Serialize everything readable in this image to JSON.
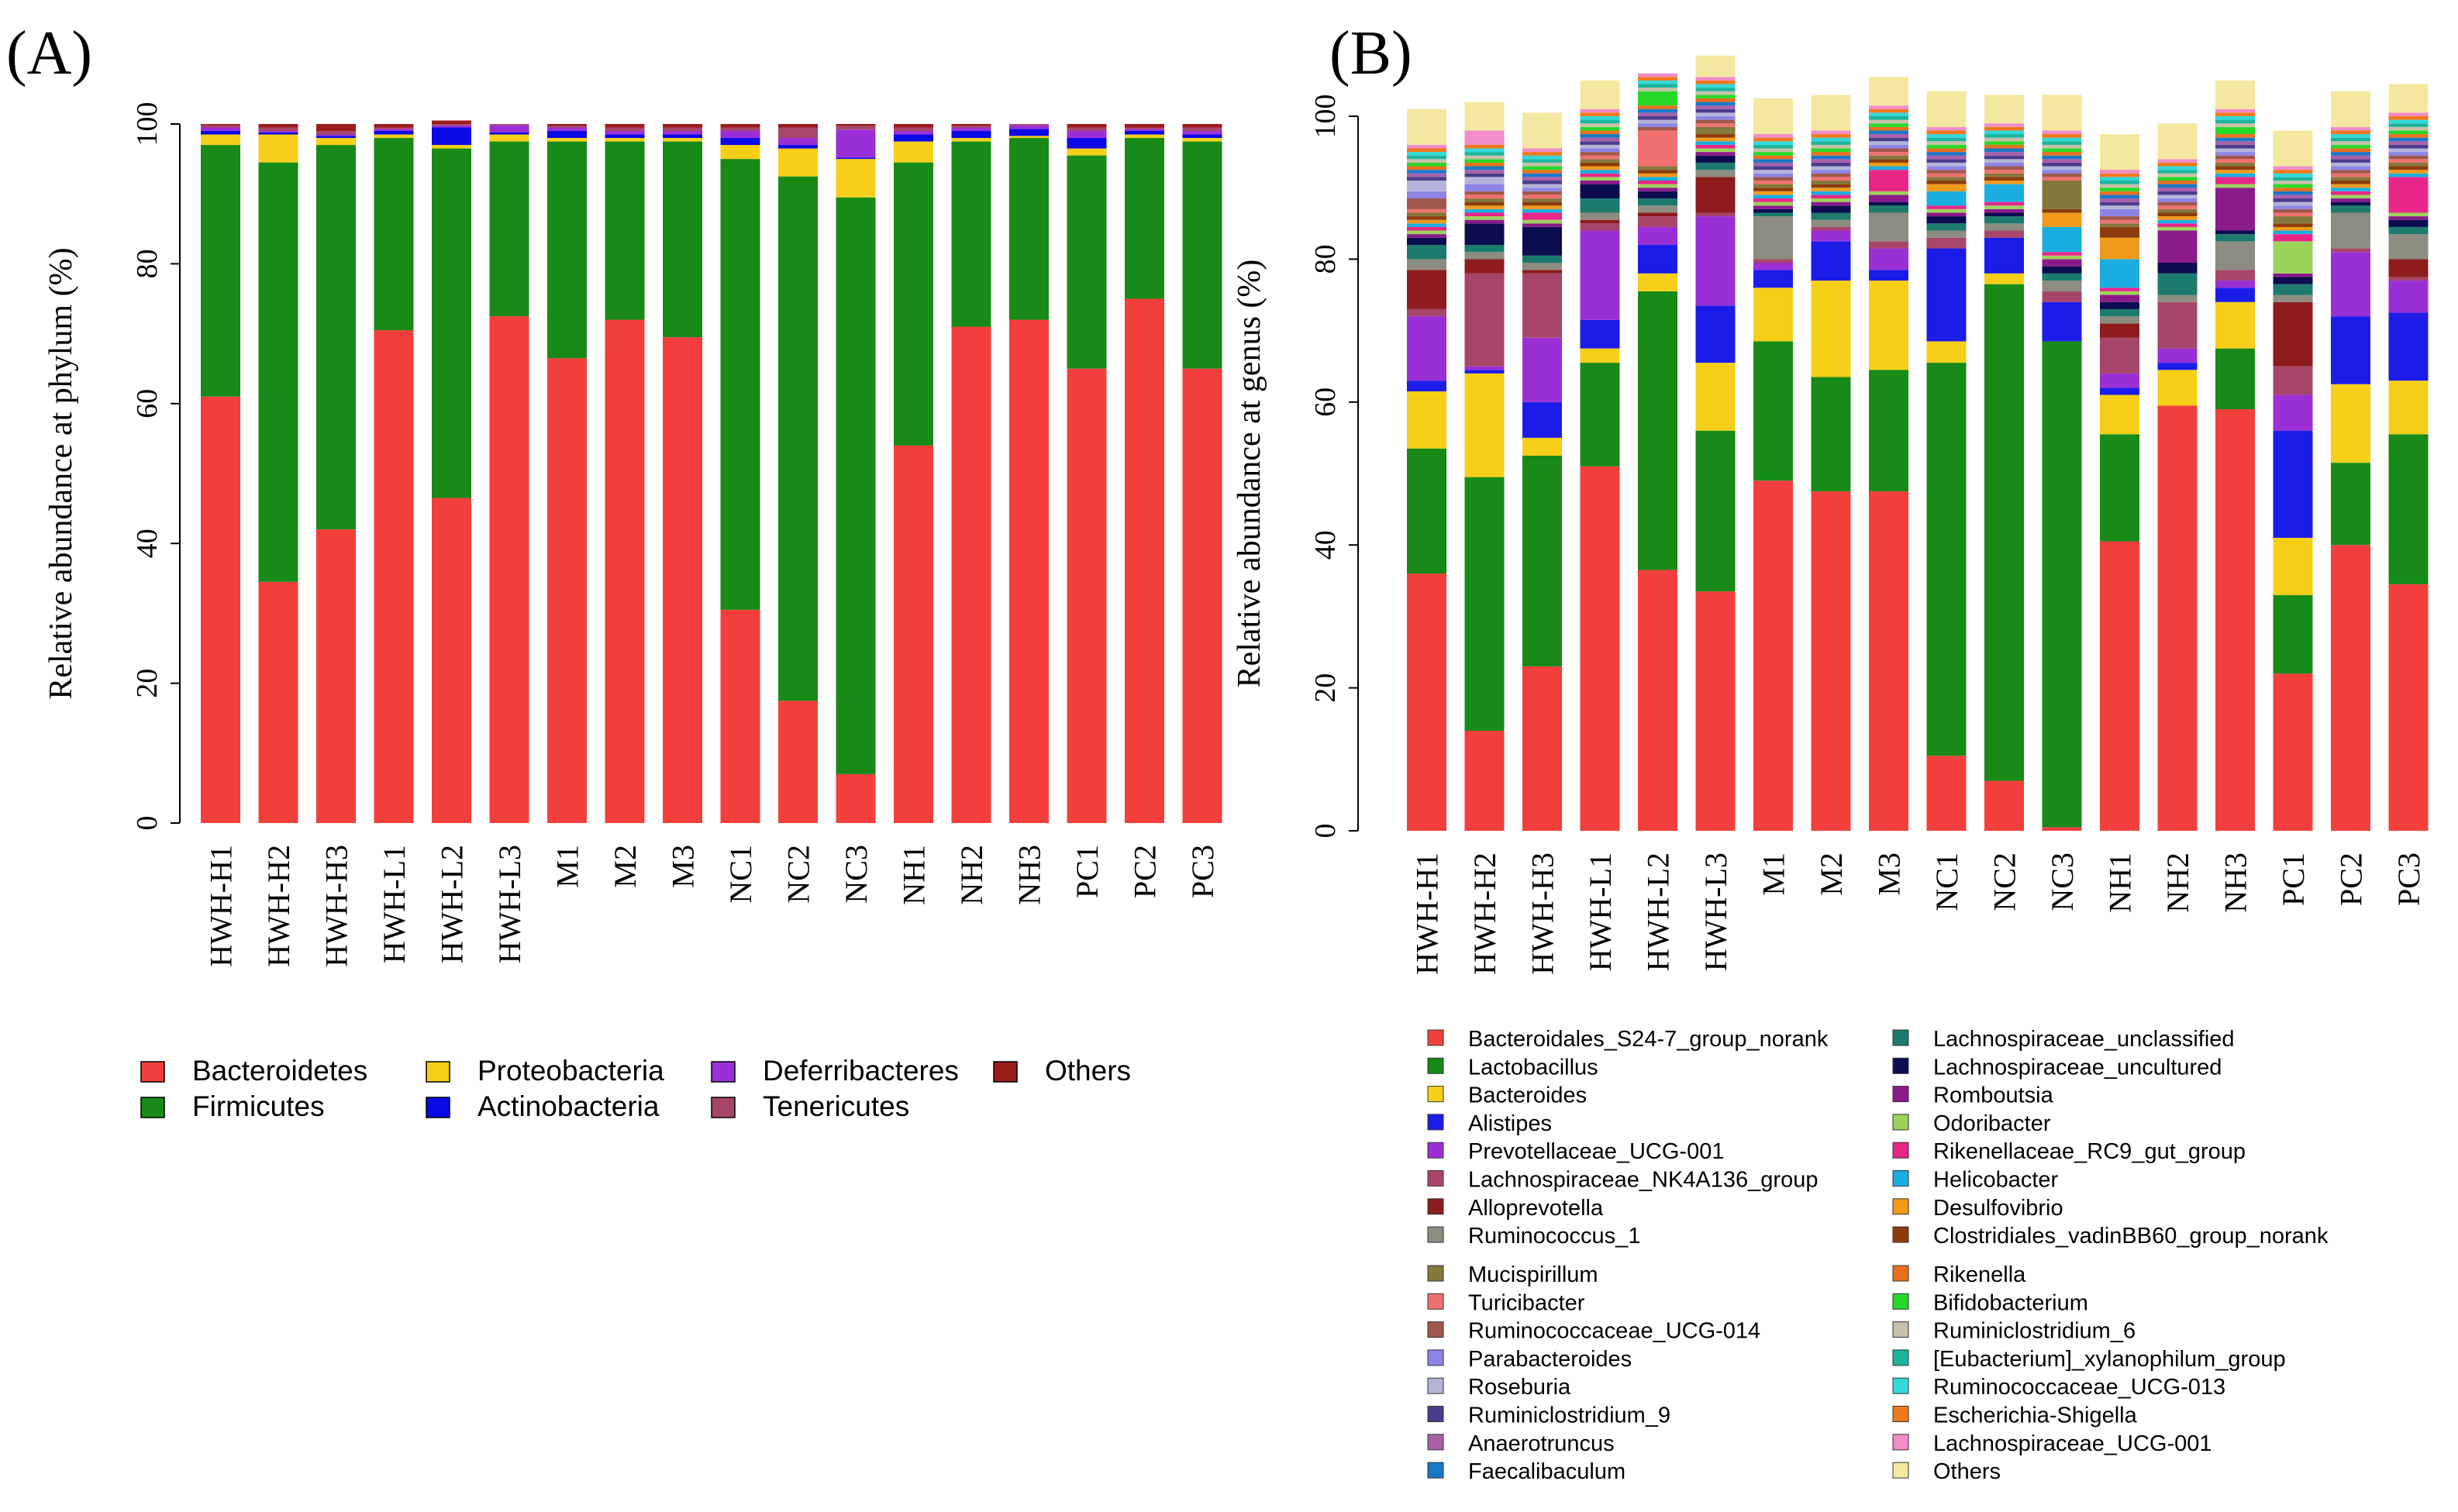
{
  "chart_data": [
    {
      "type": "bar",
      "stacked": true,
      "panel_label": "(A)",
      "title": "",
      "xlabel": "",
      "ylabel": "Relative abundance at  phylum (%)",
      "ylim": [
        0,
        100
      ],
      "yticks": [
        0,
        20,
        40,
        60,
        80,
        100
      ],
      "categories": [
        "HWH-H1",
        "HWH-H2",
        "HWH-H3",
        "HWH-L1",
        "HWH-L2",
        "HWH-L3",
        "M1",
        "M2",
        "M3",
        "NC1",
        "NC2",
        "NC3",
        "NH1",
        "NH2",
        "NH3",
        "PC1",
        "PC2",
        "PC3"
      ],
      "series": [
        {
          "name": "Bacteroidetes",
          "color": "#f33f3b",
          "values": [
            61,
            34.5,
            42,
            70.5,
            46.5,
            72.5,
            66.5,
            72,
            69.5,
            30.5,
            17.5,
            7,
            54,
            71,
            72,
            65,
            75,
            65
          ]
        },
        {
          "name": "Firmicutes",
          "color": "#178a17",
          "values": [
            36,
            60,
            55,
            27.5,
            50,
            25,
            31,
            25.5,
            28,
            64.5,
            75,
            82.5,
            40.5,
            26.5,
            26,
            30.5,
            23,
            32.5
          ]
        },
        {
          "name": "Proteobacteria",
          "color": "#f7cf18",
          "values": [
            1.5,
            4,
            1,
            0.5,
            0.5,
            1,
            0.5,
            0.5,
            0.5,
            2,
            4,
            5.5,
            3,
            0.5,
            0.3,
            1,
            0.5,
            0.5
          ]
        },
        {
          "name": "Actinobacteria",
          "color": "#0a0ae6",
          "values": [
            0.5,
            0.3,
            0.3,
            0.5,
            2.5,
            0.3,
            1,
            0.5,
            0.5,
            1,
            0.5,
            0.2,
            1,
            1,
            1,
            1.5,
            0.5,
            0.5
          ]
        },
        {
          "name": "Deferribacteres",
          "color": "#9b2fd6",
          "values": [
            0.5,
            0.2,
            0.2,
            0.3,
            0.3,
            1,
            0.5,
            0.5,
            0.5,
            1,
            1,
            4,
            0.5,
            0.5,
            0.5,
            1,
            0.3,
            0.5
          ]
        },
        {
          "name": "Tenericutes",
          "color": "#a8456a",
          "values": [
            0.3,
            0.5,
            0.5,
            0.2,
            0.2,
            0.2,
            0.2,
            0.5,
            0.5,
            0.5,
            1.5,
            0.5,
            0.5,
            0.2,
            0.2,
            0.5,
            0.2,
            0.5
          ]
        },
        {
          "name": "Others",
          "color": "#9c1c1c",
          "values": [
            0.2,
            0.5,
            1,
            0.5,
            0.5,
            0,
            0.3,
            0.5,
            0.5,
            0.5,
            0.5,
            0.3,
            0.5,
            0.3,
            0,
            0.5,
            0.5,
            0.5
          ]
        }
      ]
    },
    {
      "type": "bar",
      "stacked": true,
      "panel_label": "(B)",
      "title": "",
      "xlabel": "",
      "ylabel": "Relative abundance at genus (%)",
      "ylim": [
        0,
        100
      ],
      "yticks": [
        0,
        20,
        40,
        60,
        80,
        100
      ],
      "categories": [
        "HWH-H1",
        "HWH-H2",
        "HWH-H3",
        "HWH-L1",
        "HWH-L2",
        "HWH-L3",
        "M1",
        "M2",
        "M3",
        "NC1",
        "NC2",
        "NC3",
        "NH1",
        "NH2",
        "NH3",
        "PC1",
        "PC2",
        "PC3"
      ],
      "series": [
        {
          "name": "Bacteroidales_S24-7_group_norank",
          "color": "#f33f3b",
          "values": [
            36,
            14,
            23,
            51,
            36.5,
            33.5,
            49,
            47.5,
            47.5,
            10.5,
            7,
            0.5,
            40.5,
            59.5,
            59,
            22,
            40,
            34.5
          ]
        },
        {
          "name": "Lactobacillus",
          "color": "#178a17",
          "values": [
            17.5,
            35.5,
            29.5,
            14.5,
            39,
            22.5,
            19.5,
            16,
            17,
            55,
            69.5,
            68,
            15,
            0,
            8.5,
            11,
            11.5,
            21
          ]
        },
        {
          "name": "Bacteroides",
          "color": "#f7cf18",
          "values": [
            8,
            14.5,
            2.5,
            2,
            2.5,
            9.5,
            7.5,
            13.5,
            12.5,
            3,
            1.5,
            0,
            5.5,
            5,
            6.5,
            8,
            11,
            7.5
          ]
        },
        {
          "name": "Alistipes",
          "color": "#1c1ce8",
          "values": [
            1.5,
            0.5,
            5,
            4,
            4,
            8,
            2.5,
            5.5,
            1.5,
            13,
            5,
            5.5,
            1,
            1,
            2,
            15,
            9.5,
            9.5
          ]
        },
        {
          "name": "Prevotellaceae_UCG-001",
          "color": "#9b2fd6",
          "values": [
            9,
            0.5,
            9,
            12.5,
            2.5,
            12.5,
            1,
            1.5,
            3,
            0,
            0,
            0,
            2,
            2,
            1,
            5,
            9,
            4.5
          ]
        },
        {
          "name": "Lachnospiraceae_NK4A136_group",
          "color": "#a8456a",
          "values": [
            1,
            13,
            9,
            1,
            1.5,
            0.5,
            0.5,
            0.5,
            1,
            1.5,
            1,
            1.5,
            5,
            6.5,
            1.5,
            4,
            0.5,
            0.5
          ]
        },
        {
          "name": "Alloprevotella",
          "color": "#8e1c1c",
          "values": [
            5.5,
            2,
            0.5,
            0.5,
            0.5,
            5,
            0,
            0,
            0,
            0,
            0,
            0,
            2,
            0,
            0,
            9,
            0,
            2.5
          ]
        },
        {
          "name": "Ruminococcus_1",
          "color": "#8c8c80",
          "values": [
            1.5,
            1,
            1,
            1,
            1,
            1,
            6,
            1,
            4,
            1,
            1,
            1.5,
            1,
            1,
            4,
            1,
            5,
            3.5
          ]
        },
        {
          "name": "Lachnospiraceae_unclassified",
          "color": "#1d7a6e",
          "values": [
            2,
            1,
            1,
            2,
            1,
            1,
            0.5,
            1,
            1,
            1,
            1,
            1,
            1,
            3,
            1,
            1.5,
            1,
            1
          ]
        },
        {
          "name": "Lachnospiraceae_uncultured",
          "color": "#0c0c50",
          "values": [
            1,
            3,
            4,
            2,
            1,
            1,
            0.5,
            1,
            0.5,
            1,
            0.5,
            1,
            1,
            1.5,
            0.5,
            1,
            0.5,
            1
          ]
        },
        {
          "name": "Romboutsia",
          "color": "#8b1a8b",
          "values": [
            0.5,
            0.5,
            0.5,
            0.5,
            0.5,
            0.5,
            0.5,
            0.5,
            1,
            0.5,
            0.5,
            1,
            1,
            4.5,
            6,
            0.5,
            0.5,
            0.5
          ]
        },
        {
          "name": "Odoribacter",
          "color": "#9cd35a",
          "values": [
            0.5,
            0.5,
            0.5,
            0.5,
            0.5,
            0.5,
            0.5,
            0.5,
            0.5,
            0.5,
            0.5,
            0.5,
            0.5,
            0.5,
            0.5,
            4.5,
            0.5,
            0.5
          ]
        },
        {
          "name": "Rikenellaceae_RC9_gut_group",
          "color": "#e82688",
          "values": [
            0.5,
            0.5,
            1,
            0.5,
            0.5,
            0.5,
            0.5,
            0.5,
            3,
            0.5,
            0.5,
            0.5,
            0.5,
            0.5,
            1,
            1,
            0.5,
            5
          ]
        },
        {
          "name": "Helicobacter",
          "color": "#1aaee0",
          "values": [
            0.5,
            0.5,
            0.5,
            0.5,
            0.5,
            0.5,
            0.5,
            0.5,
            0.5,
            2,
            2.5,
            3.5,
            4,
            0.5,
            0.5,
            0.5,
            0.5,
            0.5
          ]
        },
        {
          "name": "Desulfovibrio",
          "color": "#f29a1c",
          "values": [
            0.5,
            0.5,
            0.5,
            0.5,
            0.5,
            0.5,
            0.5,
            0.5,
            0.5,
            1,
            0.5,
            2,
            3,
            0.5,
            0.5,
            0.5,
            0.5,
            0.5
          ]
        },
        {
          "name": "Clostridiales_vadinBB60_group_norank",
          "color": "#8c3c0c",
          "values": [
            0.5,
            0.5,
            0.5,
            0.5,
            0.5,
            0.5,
            0.5,
            0.5,
            0.5,
            0.5,
            0.5,
            0.5,
            1.5,
            0.5,
            0.5,
            0.5,
            0.5,
            0.5
          ]
        },
        {
          "name": "Mucispirillum",
          "color": "#84783c",
          "values": [
            0.5,
            0.5,
            0.5,
            0.5,
            0.5,
            1,
            0.5,
            0.5,
            0.5,
            0.5,
            0.5,
            4,
            0.5,
            0.5,
            0.5,
            1,
            0.5,
            0.5
          ]
        },
        {
          "name": "Turicibacter",
          "color": "#f07070",
          "values": [
            0.5,
            0.5,
            0.5,
            0.5,
            5,
            0.5,
            0.5,
            0.5,
            0.5,
            0.5,
            0.5,
            0.5,
            0.5,
            0.5,
            0.5,
            0.5,
            0.5,
            0.5
          ]
        },
        {
          "name": "Ruminococcaceae_UCG-014",
          "color": "#a0584c",
          "values": [
            1.5,
            0.5,
            0.5,
            0.5,
            0.5,
            0.5,
            0.5,
            0.5,
            0.5,
            0.5,
            0.5,
            0.5,
            0.5,
            0.5,
            0.5,
            0.5,
            0.5,
            0.5
          ]
        },
        {
          "name": "Parabacteroides",
          "color": "#8c84e6",
          "values": [
            1,
            1,
            0.5,
            0.5,
            0.5,
            0.5,
            0.5,
            0.5,
            0.5,
            0.5,
            0.5,
            0.5,
            1,
            0.5,
            0.5,
            0.5,
            0.5,
            0.5
          ]
        },
        {
          "name": "Roseburia",
          "color": "#b4b4d8",
          "values": [
            1.5,
            1,
            0.5,
            0.5,
            0.5,
            0.5,
            0.5,
            0.5,
            0.5,
            0.5,
            0.5,
            0.5,
            0.5,
            0.5,
            0.5,
            0.5,
            0.5,
            0.5
          ]
        },
        {
          "name": "Ruminiclostridium_9",
          "color": "#4c3c8c",
          "values": [
            0.5,
            0.5,
            0.5,
            0.5,
            0.5,
            0.5,
            0.5,
            0.5,
            0.5,
            0.5,
            0.5,
            0.5,
            0.5,
            0.5,
            0.5,
            0.5,
            0.5,
            0.5
          ]
        },
        {
          "name": "Anaerotruncus",
          "color": "#a860a8",
          "values": [
            0.5,
            0.5,
            0.5,
            0.5,
            0.5,
            0.5,
            0.5,
            0.5,
            0.5,
            0.5,
            0.5,
            0.5,
            0.5,
            0.5,
            0.5,
            0.5,
            0.5,
            0.5
          ]
        },
        {
          "name": "Faecalibaculum",
          "color": "#1a78c8",
          "values": [
            0.5,
            0.5,
            0.5,
            0.5,
            0.5,
            0.5,
            0.5,
            0.5,
            0.5,
            0.5,
            0.5,
            0.5,
            0.5,
            0.5,
            0.5,
            0.5,
            0.5,
            0.5
          ]
        },
        {
          "name": "Rikenella",
          "color": "#e8701c",
          "values": [
            0.5,
            0.5,
            0.5,
            0.5,
            0.5,
            0.5,
            0.5,
            0.5,
            0.5,
            0.5,
            0.5,
            0.5,
            0.5,
            0.5,
            0.5,
            0.5,
            0.5,
            0.5
          ]
        },
        {
          "name": "Bifidobacterium",
          "color": "#28d828",
          "values": [
            0.5,
            0.5,
            0.5,
            0.5,
            2,
            0.5,
            0.5,
            0.5,
            0.5,
            0.5,
            0.5,
            0.5,
            0.5,
            0.5,
            1,
            0.5,
            0.5,
            0.5
          ]
        },
        {
          "name": "Ruminiclostridium_6",
          "color": "#c8c0a8",
          "values": [
            0.5,
            0.5,
            0.5,
            0.5,
            0.5,
            0.5,
            0.5,
            0.5,
            0.5,
            0.5,
            0.5,
            0.5,
            0.5,
            0.5,
            0.5,
            0.5,
            0.5,
            0.5
          ]
        },
        {
          "name": "[Eubacterium]_xylanophilum_group",
          "color": "#1cb49c",
          "values": [
            0.5,
            0.5,
            0.5,
            0.5,
            0.5,
            0.5,
            0.5,
            0.5,
            0.5,
            0.5,
            0.5,
            0.5,
            0.5,
            0.5,
            0.5,
            0.5,
            0.5,
            0.5
          ]
        },
        {
          "name": "Ruminococcaceae_UCG-013",
          "color": "#34d8d8",
          "values": [
            0.5,
            0.5,
            0.5,
            0.5,
            0.5,
            0.5,
            0.5,
            0.5,
            0.5,
            0.5,
            0.5,
            0.5,
            0.5,
            0.5,
            0.5,
            0.5,
            0.5,
            0.5
          ]
        },
        {
          "name": "Escherichia-Shigella",
          "color": "#f0781c",
          "values": [
            0.5,
            0.5,
            0.5,
            0.5,
            0.5,
            0.5,
            0.5,
            0.5,
            0.5,
            0.5,
            0.5,
            0.5,
            0.5,
            0.5,
            0.5,
            0.5,
            0.5,
            0.5
          ]
        },
        {
          "name": "Lachnospiraceae_UCG-001",
          "color": "#f08cc8",
          "values": [
            0.5,
            2,
            0.5,
            0.5,
            0.5,
            0.5,
            0.5,
            0.5,
            0.5,
            0.5,
            0.5,
            0.5,
            0.5,
            0.5,
            0.5,
            0.5,
            0.5,
            0.5
          ]
        },
        {
          "name": "Others",
          "color": "#f4e8a0",
          "values": [
            5,
            4,
            5,
            4,
            0,
            3,
            5,
            5,
            4,
            5,
            4,
            5,
            5,
            5,
            4,
            5,
            5,
            4
          ]
        }
      ]
    }
  ]
}
